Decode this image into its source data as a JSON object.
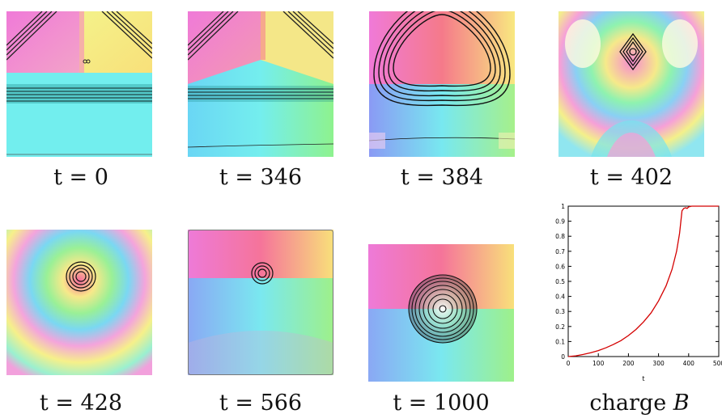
{
  "captions": [
    "t = 0",
    "t = 346",
    "t = 384",
    "t = 402",
    "t = 428",
    "t = 566",
    "t = 1000"
  ],
  "last_caption": {
    "prefix": "charge ",
    "symbol": "B"
  },
  "chart_data": {
    "type": "line",
    "xlabel": "t",
    "ylabel": "",
    "xlim": [
      0,
      500
    ],
    "ylim": [
      0,
      1
    ],
    "x_ticks": [
      "0",
      "100",
      "200",
      "300",
      "400",
      "500"
    ],
    "y_ticks": [
      "0",
      "0.1",
      "0.2",
      "0.3",
      "0.4",
      "0.5",
      "0.6",
      "0.7",
      "0.8",
      "0.9",
      "1"
    ],
    "series": [
      {
        "color": "#d40000",
        "points": [
          [
            0,
            0
          ],
          [
            25,
            0.005
          ],
          [
            50,
            0.014
          ],
          [
            75,
            0.025
          ],
          [
            100,
            0.04
          ],
          [
            125,
            0.058
          ],
          [
            150,
            0.08
          ],
          [
            175,
            0.106
          ],
          [
            200,
            0.14
          ],
          [
            225,
            0.18
          ],
          [
            250,
            0.23
          ],
          [
            275,
            0.29
          ],
          [
            300,
            0.37
          ],
          [
            325,
            0.47
          ],
          [
            345,
            0.58
          ],
          [
            360,
            0.7
          ],
          [
            370,
            0.82
          ],
          [
            378,
            0.97
          ],
          [
            384,
            0.985
          ],
          [
            390,
            0.99
          ],
          [
            395,
            0.985
          ],
          [
            400,
            0.995
          ],
          [
            410,
            1.0
          ],
          [
            500,
            1.0
          ]
        ]
      }
    ]
  }
}
